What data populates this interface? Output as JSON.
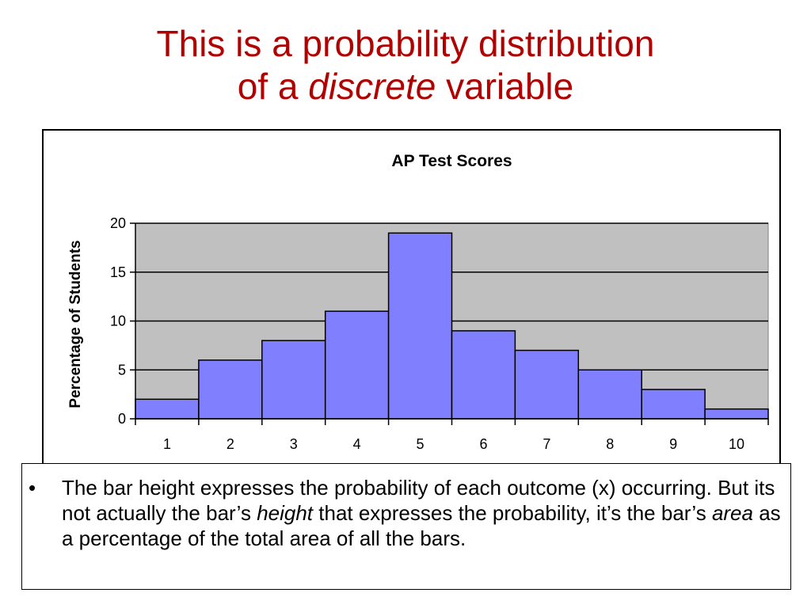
{
  "slide": {
    "title_line1": "This is a probability distribution",
    "title_line2_pre": "of a ",
    "title_line2_em": "discrete",
    "title_line2_post": " variable"
  },
  "chart_data": {
    "type": "bar",
    "title": "AP Test Scores",
    "xlabel": "",
    "ylabel": "Percentage of Students",
    "categories": [
      "1",
      "2",
      "3",
      "4",
      "5",
      "6",
      "7",
      "8",
      "9",
      "10"
    ],
    "values": [
      2,
      6,
      8,
      11,
      19,
      9,
      7,
      5,
      3,
      1
    ],
    "ylim": [
      0,
      20
    ],
    "yticks": [
      0,
      5,
      10,
      15,
      20
    ],
    "grid": true,
    "legend": "none",
    "colors": {
      "bar": "#8080ff",
      "plot_bg": "#c0c0c0",
      "bar_edge": "#000000"
    }
  },
  "bullet": {
    "part1": "The bar height expresses the probability of each outcome (x) occurring. But its not actually the bar’s ",
    "em1": "height",
    "part2": " that expresses the probability, it’s the bar’s ",
    "em2": "area",
    "part3": " as a percentage of the total area of all the bars."
  },
  "colors": {
    "title": "#b00000"
  }
}
